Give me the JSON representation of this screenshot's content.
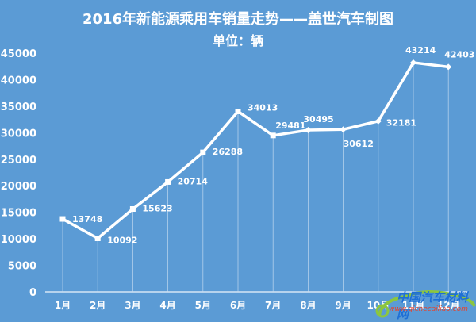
{
  "chart_data": {
    "type": "line",
    "title": "2016年新能源乘用车销量走势——盖世汽车制图",
    "subtitle": "单位：辆",
    "xlabel": "",
    "ylabel": "",
    "categories": [
      "1月",
      "2月",
      "3月",
      "4月",
      "5月",
      "6月",
      "7月",
      "8月",
      "9月",
      "10月",
      "11月",
      "12月"
    ],
    "values": [
      13748,
      10092,
      15623,
      20714,
      26288,
      34013,
      29481,
      30495,
      30612,
      32181,
      43214,
      42403
    ],
    "yticks": [
      0,
      5000,
      10000,
      15000,
      20000,
      25000,
      30000,
      35000,
      40000,
      45000
    ],
    "ylim": [
      0,
      45000
    ],
    "grid": false,
    "drop_lines": true,
    "legend": null,
    "colors": {
      "background": "#5b9bd5",
      "line": "#ffffff",
      "text": "#ffffff"
    }
  },
  "header": {
    "title": "2016年新能源乘用车销量走势——盖世汽车制图",
    "subtitle": "单位：辆"
  },
  "watermark": {
    "text": "中国汽车材料网",
    "url": "www.qichecailiao.com"
  }
}
